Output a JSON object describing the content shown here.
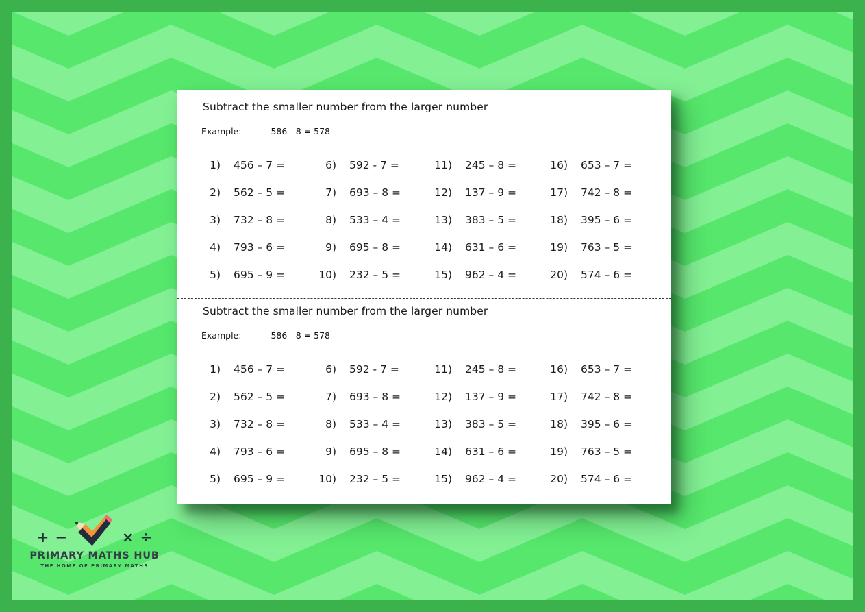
{
  "page": {
    "colors": {
      "frame": "#3cb24c",
      "chevron_medium": "#56e76c",
      "chevron_light": "#83f094",
      "card_background": "#ffffff",
      "text": "#1c1c1c"
    }
  },
  "worksheet": {
    "sections": [
      {
        "title": "Subtract the smaller number from the larger number",
        "example_label": "Example:",
        "example_expression": "586 - 8 = 578",
        "problems": [
          {
            "number": "1)",
            "expression": "456 – 7 ="
          },
          {
            "number": "2)",
            "expression": "562 – 5 ="
          },
          {
            "number": "3)",
            "expression": "732 – 8 ="
          },
          {
            "number": "4)",
            "expression": "793 – 6 ="
          },
          {
            "number": "5)",
            "expression": "695 – 9 ="
          },
          {
            "number": "6)",
            "expression": "592 - 7 ="
          },
          {
            "number": "7)",
            "expression": "693 – 8 ="
          },
          {
            "number": "8)",
            "expression": "533 – 4 ="
          },
          {
            "number": "9)",
            "expression": "695 – 8 ="
          },
          {
            "number": "10)",
            "expression": "232 – 5 ="
          },
          {
            "number": "11)",
            "expression": "245 – 8 ="
          },
          {
            "number": "12)",
            "expression": "137 – 9 ="
          },
          {
            "number": "13)",
            "expression": "383 – 5 ="
          },
          {
            "number": "14)",
            "expression": "631 – 6 ="
          },
          {
            "number": "15)",
            "expression": "962 – 4 ="
          },
          {
            "number": "16)",
            "expression": "653 – 7 ="
          },
          {
            "number": "17)",
            "expression": "742 – 8 ="
          },
          {
            "number": "18)",
            "expression": "395 – 6 ="
          },
          {
            "number": "19)",
            "expression": "763 – 5 ="
          },
          {
            "number": "20)",
            "expression": "574 – 6 ="
          }
        ]
      },
      {
        "title": "Subtract the smaller number from the larger number",
        "example_label": "Example:",
        "example_expression": "586 - 8 = 578",
        "problems": [
          {
            "number": "1)",
            "expression": "456 – 7 ="
          },
          {
            "number": "2)",
            "expression": "562 – 5 ="
          },
          {
            "number": "3)",
            "expression": "732 – 8 ="
          },
          {
            "number": "4)",
            "expression": "793 – 6 ="
          },
          {
            "number": "5)",
            "expression": "695 – 9 ="
          },
          {
            "number": "6)",
            "expression": "592 - 7 ="
          },
          {
            "number": "7)",
            "expression": "693 – 8 ="
          },
          {
            "number": "8)",
            "expression": "533 – 4 ="
          },
          {
            "number": "9)",
            "expression": "695 – 8 ="
          },
          {
            "number": "10)",
            "expression": "232 – 5 ="
          },
          {
            "number": "11)",
            "expression": "245 – 8 ="
          },
          {
            "number": "12)",
            "expression": "137 – 9 ="
          },
          {
            "number": "13)",
            "expression": "383 – 5 ="
          },
          {
            "number": "14)",
            "expression": "631 – 6 ="
          },
          {
            "number": "15)",
            "expression": "962 – 4 ="
          },
          {
            "number": "16)",
            "expression": "653 – 7 ="
          },
          {
            "number": "17)",
            "expression": "742 – 8 ="
          },
          {
            "number": "18)",
            "expression": "395 – 6 ="
          },
          {
            "number": "19)",
            "expression": "763 – 5 ="
          },
          {
            "number": "20)",
            "expression": "574 – 6 ="
          }
        ]
      }
    ]
  },
  "logo": {
    "symbols": [
      "+",
      "−",
      "×",
      "÷"
    ],
    "title": "PRIMARY MATHS HUB",
    "tagline": "THE HOME OF PRIMARY MATHS",
    "icon": "pencil-check-icon",
    "colors": {
      "check_shadow": "#242c3c",
      "pencil_body": "#f6913e",
      "eraser": "#ee6d79",
      "pencil_tip": "#f0e2bd",
      "text": "#363d49"
    }
  }
}
